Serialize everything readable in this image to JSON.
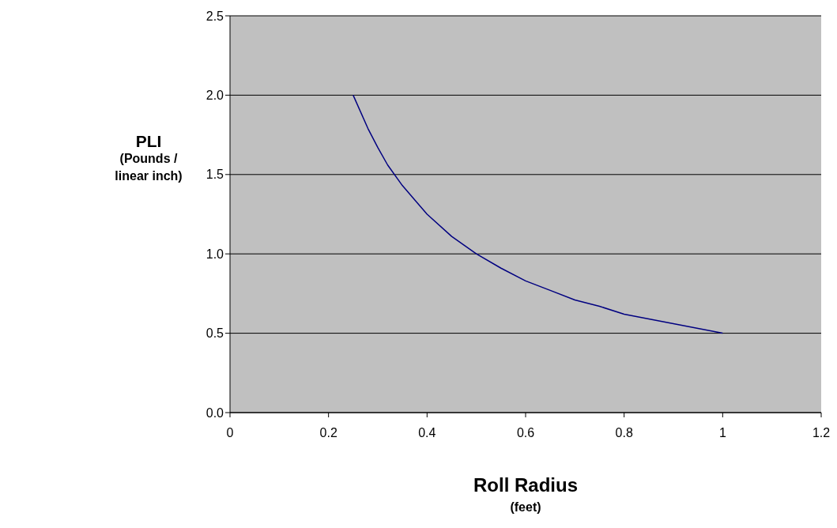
{
  "chart_data": {
    "type": "line",
    "xlabel": "Roll Radius\n(feet)",
    "ylabel": "PLI\n(Pounds /\nlinear inch)",
    "x": [
      0.25,
      0.28,
      0.3,
      0.32,
      0.35,
      0.4,
      0.45,
      0.5,
      0.55,
      0.6,
      0.65,
      0.7,
      0.75,
      0.8,
      0.9,
      1.0
    ],
    "series": [
      {
        "color": "#000080",
        "values": [
          2.0,
          1.79,
          1.67,
          1.56,
          1.43,
          1.25,
          1.11,
          1.0,
          0.91,
          0.83,
          0.77,
          0.71,
          0.67,
          0.62,
          0.56,
          0.5
        ]
      }
    ],
    "xlim": [
      0,
      1.2
    ],
    "xticks": [
      0,
      0.2,
      0.4,
      0.6,
      0.8,
      1,
      1.2
    ],
    "ylim": [
      0,
      2.5
    ],
    "yticks": [
      {
        "value": 0,
        "label": "0.0"
      },
      {
        "value": 0.5,
        "label": "0.5"
      },
      {
        "value": 1,
        "label": "1.0"
      },
      {
        "value": 1.5,
        "label": "1.5"
      },
      {
        "value": 2,
        "label": "2.0"
      },
      {
        "value": 2.5,
        "label": "2.5"
      }
    ],
    "grid": "y",
    "legend": false,
    "marker": "none",
    "line_style": "solid"
  }
}
